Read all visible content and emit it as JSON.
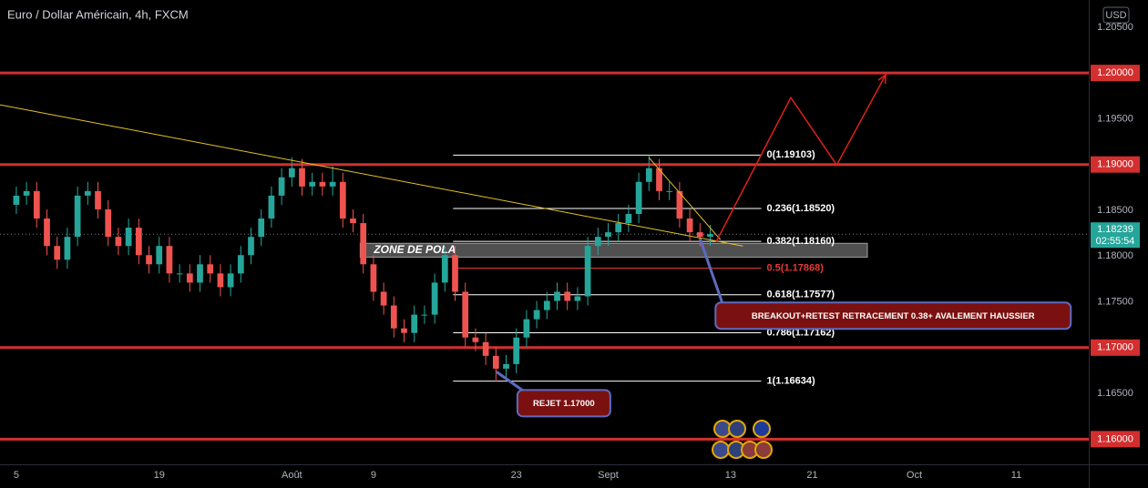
{
  "chart_data": {
    "type": "candlestick",
    "title": "Euro / Dollar Américain, 4h, FXCM",
    "currency": "USD",
    "up_color": "#26a69a",
    "down_color": "#ef5350",
    "xlim": [
      -1.6,
      105.1
    ],
    "ylim": [
      1.15725,
      1.20797
    ],
    "xticks": [
      {
        "value": 0,
        "label": "5"
      },
      {
        "value": 14,
        "label": "19"
      },
      {
        "value": 27,
        "label": "Août"
      },
      {
        "value": 35,
        "label": "9"
      },
      {
        "value": 49,
        "label": "23"
      },
      {
        "value": 58,
        "label": "Sept"
      },
      {
        "value": 70,
        "label": "13"
      },
      {
        "value": 78,
        "label": "21"
      },
      {
        "value": 88,
        "label": "Oct"
      },
      {
        "value": 98,
        "label": "11"
      }
    ],
    "yticks": [
      {
        "value": 1.205,
        "label": "1.20500"
      },
      {
        "value": 1.2,
        "label": "1.20000"
      },
      {
        "value": 1.195,
        "label": "1.19500"
      },
      {
        "value": 1.19,
        "label": "1.19000"
      },
      {
        "value": 1.185,
        "label": "1.18500"
      },
      {
        "value": 1.18,
        "label": "1.18000"
      },
      {
        "value": 1.175,
        "label": "1.17500"
      },
      {
        "value": 1.17,
        "label": "1.17000"
      },
      {
        "value": 1.165,
        "label": "1.16500"
      },
      {
        "value": 1.16,
        "label": "1.16000"
      }
    ],
    "x": [
      0,
      1,
      2,
      3,
      4,
      5,
      6,
      7,
      8,
      9,
      10,
      11,
      12,
      13,
      14,
      15,
      16,
      17,
      18,
      19,
      20,
      21,
      22,
      23,
      24,
      25,
      26,
      27,
      28,
      29,
      30,
      31,
      32,
      33,
      34,
      35,
      36,
      37,
      38,
      39,
      40,
      41,
      42,
      43,
      44,
      45,
      46,
      47,
      48,
      49,
      50,
      51,
      52,
      53,
      54,
      55,
      56,
      57,
      58,
      59,
      60,
      61,
      62,
      63,
      64,
      65,
      66,
      67,
      68
    ],
    "open": [
      1.1856,
      1.1866,
      1.1871,
      1.1841,
      1.1811,
      1.1796,
      1.1821,
      1.1866,
      1.1871,
      1.1851,
      1.1821,
      1.1811,
      1.1831,
      1.1801,
      1.1791,
      1.1811,
      1.1781,
      1.1781,
      1.1771,
      1.1791,
      1.1781,
      1.1766,
      1.1781,
      1.1801,
      1.1821,
      1.1841,
      1.1866,
      1.1886,
      1.1896,
      1.1876,
      1.1881,
      1.1876,
      1.1881,
      1.1841,
      1.1836,
      1.1791,
      1.1761,
      1.1746,
      1.1721,
      1.1716,
      1.1736,
      1.1736,
      1.1771,
      1.1801,
      1.1761,
      1.1711,
      1.1706,
      1.1691,
      1.1677,
      1.1682,
      1.1711,
      1.1731,
      1.1741,
      1.1751,
      1.1761,
      1.1751,
      1.1756,
      1.1811,
      1.1821,
      1.1826,
      1.1836,
      1.1846,
      1.1881,
      1.1896,
      1.1871,
      1.1871,
      1.1841,
      1.1826,
      1.1821
    ],
    "high": [
      1.1876,
      1.1881,
      1.1881,
      1.1851,
      1.1821,
      1.1831,
      1.1876,
      1.1881,
      1.1881,
      1.1861,
      1.1831,
      1.1841,
      1.1841,
      1.1811,
      1.1821,
      1.1821,
      1.1791,
      1.1791,
      1.1801,
      1.1801,
      1.1791,
      1.1791,
      1.1811,
      1.1831,
      1.1851,
      1.1876,
      1.1896,
      1.1908,
      1.1906,
      1.1891,
      1.1891,
      1.1898,
      1.1891,
      1.1851,
      1.1846,
      1.1801,
      1.1771,
      1.1756,
      1.1731,
      1.1746,
      1.1746,
      1.1781,
      1.1811,
      1.1811,
      1.1771,
      1.1721,
      1.1716,
      1.1701,
      1.1692,
      1.1721,
      1.1741,
      1.1751,
      1.1761,
      1.1771,
      1.1771,
      1.1766,
      1.1821,
      1.1831,
      1.1836,
      1.1846,
      1.1856,
      1.1891,
      1.191,
      1.1906,
      1.1881,
      1.1881,
      1.1851,
      1.1836,
      1.1834
    ],
    "low": [
      1.1846,
      1.1856,
      1.1831,
      1.1801,
      1.1786,
      1.1786,
      1.1811,
      1.1856,
      1.1841,
      1.1811,
      1.1801,
      1.1801,
      1.1791,
      1.1781,
      1.1781,
      1.1771,
      1.1771,
      1.1761,
      1.1761,
      1.1771,
      1.1756,
      1.1756,
      1.1771,
      1.1791,
      1.1811,
      1.1831,
      1.1856,
      1.1876,
      1.1866,
      1.1866,
      1.1866,
      1.1866,
      1.1831,
      1.1826,
      1.1781,
      1.1751,
      1.1736,
      1.1711,
      1.1706,
      1.1706,
      1.1726,
      1.1726,
      1.1761,
      1.1751,
      1.1701,
      1.1696,
      1.1681,
      1.1663,
      1.1667,
      1.1672,
      1.1701,
      1.1721,
      1.1731,
      1.1741,
      1.1741,
      1.1741,
      1.1746,
      1.1801,
      1.1811,
      1.1816,
      1.1826,
      1.1836,
      1.1871,
      1.1861,
      1.1861,
      1.1831,
      1.1816,
      1.1811,
      1.1811
    ],
    "close": [
      1.1866,
      1.1871,
      1.1841,
      1.1811,
      1.1796,
      1.1821,
      1.1866,
      1.1871,
      1.1851,
      1.1821,
      1.1811,
      1.1831,
      1.1801,
      1.1791,
      1.1811,
      1.1781,
      1.1781,
      1.1771,
      1.1791,
      1.1781,
      1.1766,
      1.1781,
      1.1801,
      1.1821,
      1.1841,
      1.1866,
      1.1886,
      1.1896,
      1.1876,
      1.1881,
      1.1876,
      1.1881,
      1.1841,
      1.1836,
      1.1791,
      1.1761,
      1.1746,
      1.1721,
      1.1716,
      1.1736,
      1.1736,
      1.1771,
      1.1801,
      1.1761,
      1.1711,
      1.1706,
      1.1691,
      1.1677,
      1.1682,
      1.1711,
      1.1731,
      1.1741,
      1.1751,
      1.1761,
      1.1751,
      1.1756,
      1.1811,
      1.1821,
      1.1826,
      1.1836,
      1.1846,
      1.1881,
      1.1896,
      1.1871,
      1.1871,
      1.1841,
      1.1826,
      1.1821,
      1.1824
    ],
    "last_price": 1.18239,
    "countdown": "02:55:54",
    "levels": {
      "color": "#d32f2f",
      "values": [
        1.2,
        1.19,
        1.17,
        1.16
      ]
    },
    "fib": {
      "x": [
        42.8,
        73
      ],
      "levels": [
        {
          "value": 1.19103,
          "label": "0(1.19103)",
          "color": "#ffffff"
        },
        {
          "value": 1.1852,
          "label": "0.236(1.18520)",
          "color": "#ffffff"
        },
        {
          "value": 1.1816,
          "label": "0.382(1.18160)",
          "color": "#ffffff"
        },
        {
          "value": 1.17868,
          "label": "0.5(1.17868)",
          "color": "#e53935"
        },
        {
          "value": 1.17577,
          "label": "0.618(1.17577)",
          "color": "#ffffff"
        },
        {
          "value": 1.17162,
          "label": "0.786(1.17162)",
          "color": "#ffffff"
        },
        {
          "value": 1.16634,
          "label": "1(1.16634)",
          "color": "#ffffff"
        }
      ]
    },
    "trendlines": [
      {
        "color": "#e6c229",
        "x": [
          -1.6,
          71.2
        ],
        "y": [
          1.19652,
          1.18109
        ]
      },
      {
        "color": "#e6c229",
        "x": [
          62,
          69
        ],
        "y": [
          1.19075,
          1.18179
        ]
      }
    ],
    "projection": {
      "color": "#e0201b",
      "x": [
        68.6,
        75.9,
        80.4,
        85.2
      ],
      "y": [
        1.18159,
        1.19731,
        1.18995,
        1.1998
      ]
    },
    "zone": {
      "label": "ZONE DE POLA",
      "x": [
        33.7,
        83.4
      ],
      "y": [
        1.17988,
        1.18139
      ]
    },
    "callouts": [
      {
        "text": "BREAKOUT+RETEST RETRACEMENT 0.38+ AVALEMENT HAUSSIER",
        "x": 67,
        "y": 1.18189
      },
      {
        "text": "REJET 1.17000",
        "x": 47.05,
        "y": 1.16736
      }
    ]
  }
}
